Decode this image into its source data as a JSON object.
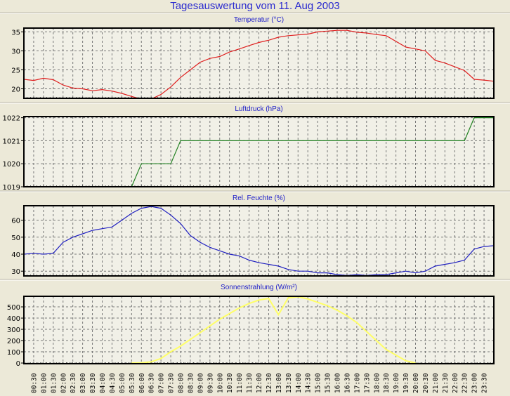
{
  "window": {
    "title": "Tagesauswertung vom 11. Aug 2003"
  },
  "colors": {
    "background": "#ece9d8",
    "plot_background": "#f1f0e7",
    "title": "#2a2acf",
    "temperature": "#e02020",
    "pressure": "#208020",
    "humidity": "#2020c0",
    "solar": "#ffff66"
  },
  "chart_data": [
    {
      "type": "line",
      "title": "Temperatur (°C)",
      "grid": true,
      "ylim": [
        17.5,
        36
      ],
      "yticks": [
        "20",
        "25",
        "30",
        "35"
      ],
      "ytick_values": [
        20,
        25,
        30,
        35
      ],
      "xlim": [
        0,
        24
      ],
      "xticks": [
        "00:30",
        "01:00",
        "01:30",
        "02:00",
        "02:30",
        "03:00",
        "03:30",
        "04:00",
        "04:30",
        "05:00",
        "05:30",
        "06:00",
        "06:30",
        "07:00",
        "07:30",
        "08:00",
        "08:30",
        "09:00",
        "09:30",
        "10:00",
        "10:30",
        "11:00",
        "11:30",
        "12:00",
        "12:30",
        "13:00",
        "13:30",
        "14:00",
        "14:30",
        "15:00",
        "15:30",
        "16:00",
        "16:30",
        "17:00",
        "17:30",
        "18:00",
        "18:30",
        "19:00",
        "19:30",
        "20:00",
        "20:30",
        "21:00",
        "21:30",
        "22:00",
        "22:30",
        "23:00",
        "23:30"
      ],
      "x": [
        0,
        0.5,
        1,
        1.5,
        2,
        2.5,
        3,
        3.5,
        4,
        4.5,
        5,
        5.5,
        6,
        6.5,
        7,
        7.5,
        8,
        8.5,
        9,
        9.5,
        10,
        10.5,
        11,
        11.5,
        12,
        12.5,
        13,
        13.5,
        14,
        14.5,
        15,
        15.5,
        16,
        16.5,
        17,
        17.5,
        18,
        18.5,
        19,
        19.5,
        20,
        20.5,
        21,
        21.5,
        22,
        22.5,
        23,
        23.5,
        24
      ],
      "values": [
        22.5,
        22.2,
        22.8,
        22.4,
        21,
        20.2,
        20,
        19.5,
        19.8,
        19.4,
        18.8,
        18,
        17.3,
        17.3,
        18.5,
        20.5,
        23,
        25,
        27,
        28,
        28.5,
        29.7,
        30.5,
        31.4,
        32.2,
        32.8,
        33.6,
        34,
        34.2,
        34.4,
        35,
        35.2,
        35.4,
        35.4,
        34.9,
        34.7,
        34.3,
        34,
        32.5,
        31,
        30.5,
        30,
        27.5,
        26.8,
        25.8,
        24.8,
        22.5,
        22.3,
        22
      ]
    },
    {
      "type": "line",
      "title": "Luftdruck (hPa)",
      "grid": true,
      "ylim": [
        1019,
        1022.05
      ],
      "yticks": [
        "1019",
        "1020",
        "1021",
        "1022"
      ],
      "ytick_values": [
        1019,
        1020,
        1021,
        1022
      ],
      "xlim": [
        0,
        24
      ],
      "x": [
        0,
        5.5,
        6,
        7.5,
        8,
        22.5,
        23,
        24
      ],
      "values": [
        1019,
        1019,
        1020,
        1020,
        1021,
        1021,
        1022,
        1022
      ]
    },
    {
      "type": "line",
      "title": "Rel. Feuchte (%)",
      "grid": true,
      "ylim": [
        27.2,
        68.5
      ],
      "yticks": [
        "30",
        "40",
        "50",
        "60"
      ],
      "ytick_values": [
        30,
        40,
        50,
        60
      ],
      "xlim": [
        0,
        24
      ],
      "x": [
        0,
        0.5,
        1,
        1.5,
        2,
        2.5,
        3,
        3.5,
        4,
        4.5,
        5,
        5.5,
        6,
        6.5,
        7,
        7.5,
        8,
        8.5,
        9,
        9.5,
        10,
        10.5,
        11,
        11.5,
        12,
        12.5,
        13,
        13.5,
        14,
        14.5,
        15,
        15.5,
        16,
        16.5,
        17,
        17.5,
        18,
        18.5,
        19,
        19.5,
        20,
        20.5,
        21,
        21.5,
        22,
        22.5,
        23,
        23.5,
        24
      ],
      "values": [
        40,
        40.5,
        40,
        40.5,
        47,
        50,
        52,
        54,
        55,
        56,
        60,
        64,
        67,
        68,
        67,
        63,
        58,
        51,
        47,
        44,
        42,
        40,
        39,
        36.5,
        35,
        34,
        33,
        31,
        30,
        30,
        29,
        29,
        28,
        27.5,
        28,
        27.5,
        28,
        28,
        29,
        30,
        29,
        30,
        33,
        34,
        35,
        36.5,
        43,
        44.5,
        45
      ]
    },
    {
      "type": "line",
      "title": "Sonnenstrahlung (W/m²)",
      "grid": true,
      "ylim": [
        -6,
        594
      ],
      "yticks": [
        "0",
        "100",
        "200",
        "300",
        "400",
        "500"
      ],
      "ytick_values": [
        0,
        100,
        200,
        300,
        400,
        500
      ],
      "xlim": [
        0,
        24
      ],
      "x": [
        5.5,
        6,
        6.5,
        7,
        7.5,
        8,
        8.5,
        9,
        9.5,
        10,
        10.5,
        11,
        11.5,
        12,
        12.5,
        13,
        13.5,
        14,
        14.5,
        15,
        15.5,
        16,
        16.5,
        17,
        17.5,
        18,
        18.5,
        19,
        19.5,
        20
      ],
      "values": [
        0,
        2,
        10,
        40,
        100,
        150,
        210,
        270,
        330,
        390,
        440,
        490,
        530,
        560,
        575,
        430,
        580,
        590,
        570,
        540,
        510,
        470,
        420,
        360,
        280,
        200,
        120,
        70,
        20,
        0
      ]
    }
  ]
}
